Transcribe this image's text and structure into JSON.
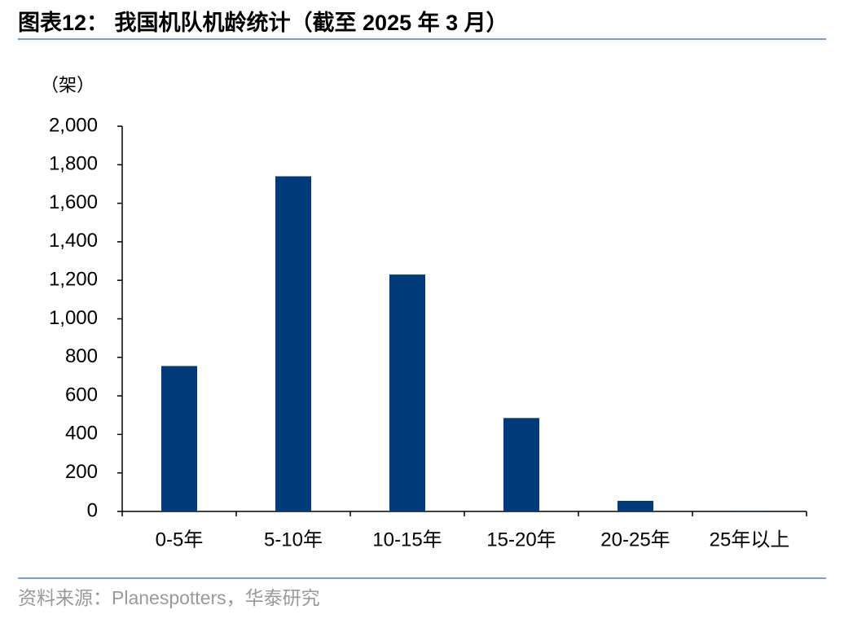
{
  "chart_data": {
    "type": "bar",
    "title": "图表12：  我国机队机龄统计（截至 2025 年 3 月）",
    "y_label": "（架）",
    "source": "资料来源：Planespotters，华泰研究",
    "categories": [
      "0-5年",
      "5-10年",
      "10-15年",
      "15-20年",
      "20-25年",
      "25年以上"
    ],
    "values": [
      755,
      1740,
      1230,
      485,
      55,
      3
    ],
    "color": "#003A7A",
    "ylim": [
      0,
      2000
    ],
    "yticks": [
      0,
      200,
      400,
      600,
      800,
      {
        "value": 1000,
        "label": "1,000"
      },
      {
        "value": 1200,
        "label": "1,200"
      },
      {
        "value": 1400,
        "label": "1,400"
      },
      {
        "value": 1600,
        "label": "1,600"
      },
      {
        "value": 1800,
        "label": "1,800"
      },
      {
        "value": 2000,
        "label": "2,000"
      }
    ],
    "grid": false
  }
}
